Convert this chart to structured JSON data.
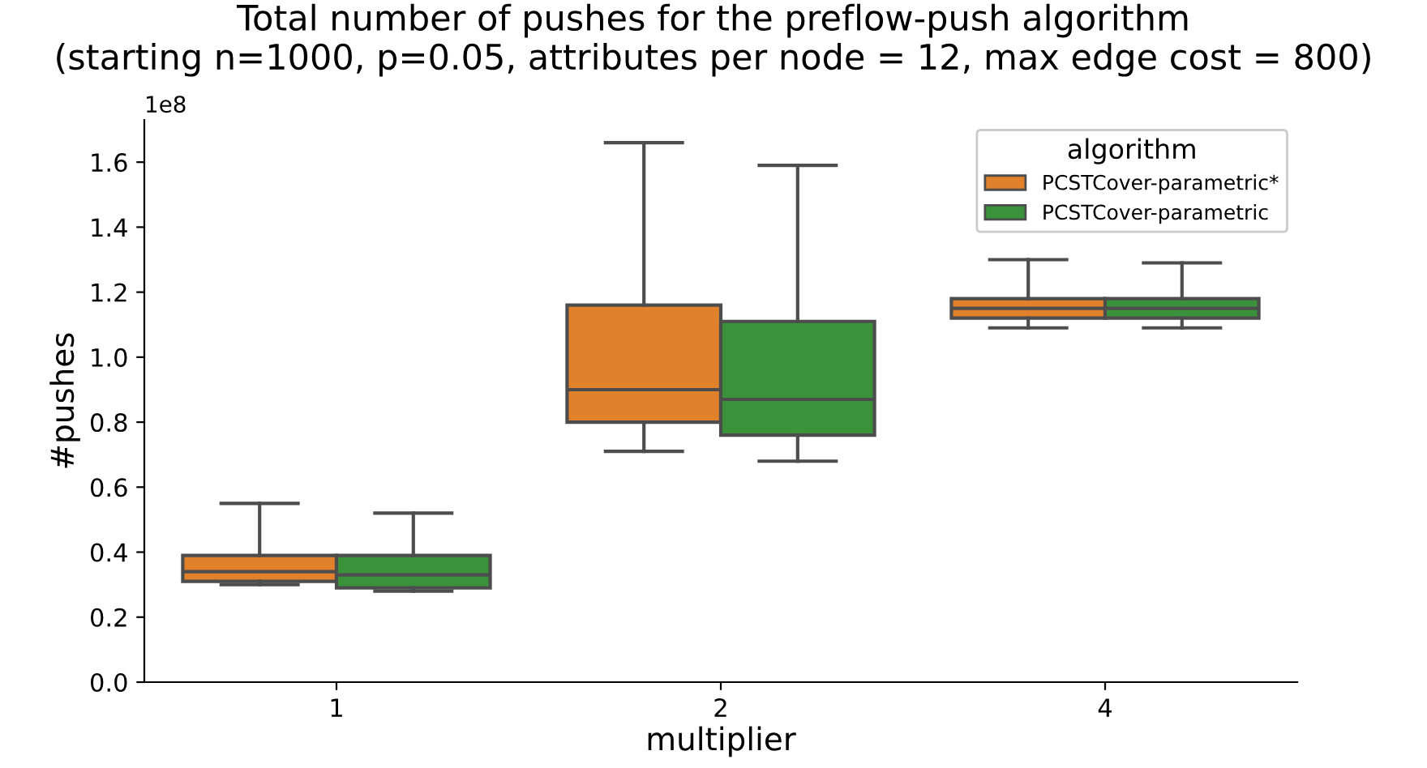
{
  "chart_data": {
    "type": "box",
    "title": "Total number of pushes for the preflow-push algorithm\n(starting n=1000, p=0.05, attributes per node = 12, max edge cost = 800)",
    "xlabel": "multiplier",
    "ylabel": "#pushes",
    "legend_title": "algorithm",
    "categories": [
      "1",
      "2",
      "4"
    ],
    "series": [
      {
        "name": "PCSTCover-parametric*",
        "color": "#e1812c",
        "boxes": [
          {
            "low": 0.3,
            "q1": 0.31,
            "median": 0.34,
            "q3": 0.39,
            "high": 0.55
          },
          {
            "low": 0.71,
            "q1": 0.8,
            "median": 0.9,
            "q3": 1.16,
            "high": 1.66
          },
          {
            "low": 1.09,
            "q1": 1.12,
            "median": 1.15,
            "q3": 1.18,
            "high": 1.3
          }
        ]
      },
      {
        "name": "PCSTCover-parametric",
        "color": "#3a923a",
        "boxes": [
          {
            "low": 0.28,
            "q1": 0.29,
            "median": 0.33,
            "q3": 0.39,
            "high": 0.52
          },
          {
            "low": 0.68,
            "q1": 0.76,
            "median": 0.87,
            "q3": 1.11,
            "high": 1.59
          },
          {
            "low": 1.09,
            "q1": 1.12,
            "median": 1.15,
            "q3": 1.18,
            "high": 1.29
          }
        ]
      }
    ],
    "ylim": [
      0,
      1.73
    ],
    "yticks": [
      {
        "value": 0,
        "label": "0.0"
      },
      0.2,
      0.4,
      0.6,
      0.8,
      {
        "value": 1,
        "label": "1.0"
      },
      1.2,
      1.4,
      1.6
    ],
    "annotations": [
      "1e8"
    ],
    "legend": "top right",
    "grid": false
  }
}
